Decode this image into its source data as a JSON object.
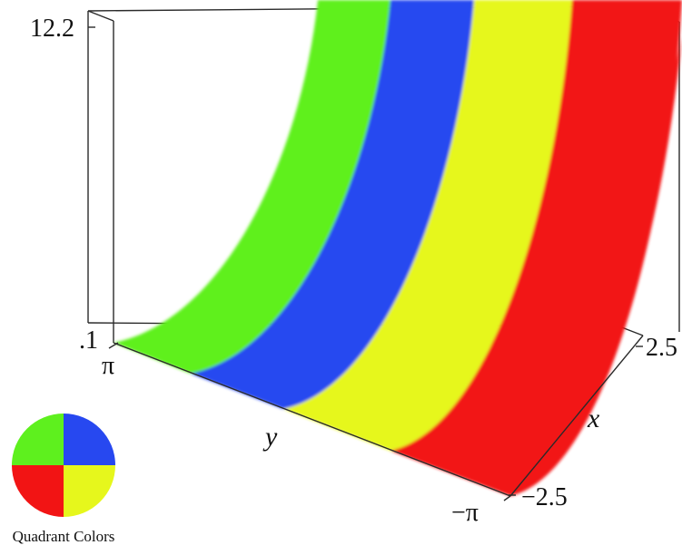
{
  "chart_data": {
    "type": "surface-3d",
    "title": "",
    "z_axis": {
      "ticks": [
        "12.2",
        ".1"
      ],
      "range": [
        0.1,
        12.2
      ]
    },
    "y_axis": {
      "label": "y",
      "ticks": [
        "π",
        "−π"
      ],
      "range": [
        "π",
        "−π"
      ]
    },
    "x_axis": {
      "label": "x",
      "ticks": [
        "2.5",
        "−2.5"
      ],
      "range": [
        -2.5,
        2.5
      ]
    },
    "bands": [
      {
        "quadrant": "green",
        "color": "#5ef01e"
      },
      {
        "quadrant": "blue",
        "color": "#2748f0"
      },
      {
        "quadrant": "yellow",
        "color": "#e6f71c"
      },
      {
        "quadrant": "red",
        "color": "#f21414"
      }
    ],
    "legend": {
      "label": "Quadrant Colors",
      "quadrants": [
        {
          "position": "top-left",
          "color": "#5ef01e"
        },
        {
          "position": "top-right",
          "color": "#2748f0"
        },
        {
          "position": "bottom-left",
          "color": "#f21414"
        },
        {
          "position": "bottom-right",
          "color": "#e6f71c"
        }
      ]
    }
  }
}
